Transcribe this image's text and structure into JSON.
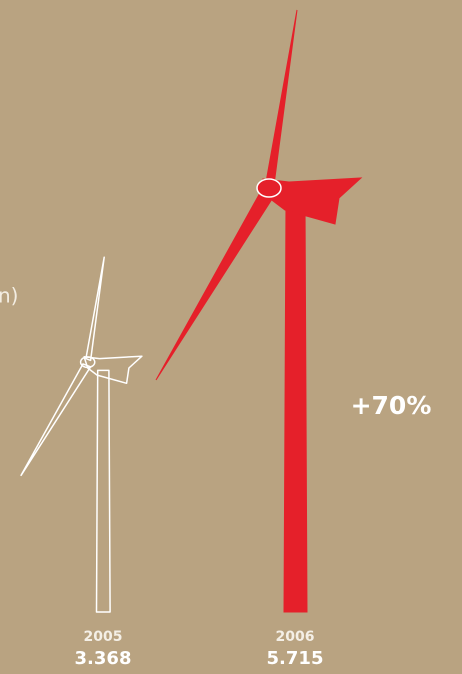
{
  "chart_data": {
    "type": "turbine",
    "categories": [
      "2005",
      "2006"
    ],
    "values": [
      3.368,
      5.715
    ],
    "colors": [
      "#ffffff",
      "#e5202a"
    ],
    "styles": [
      "outline",
      "filled"
    ],
    "annotation": "+70%",
    "label_fragment": "n)"
  }
}
